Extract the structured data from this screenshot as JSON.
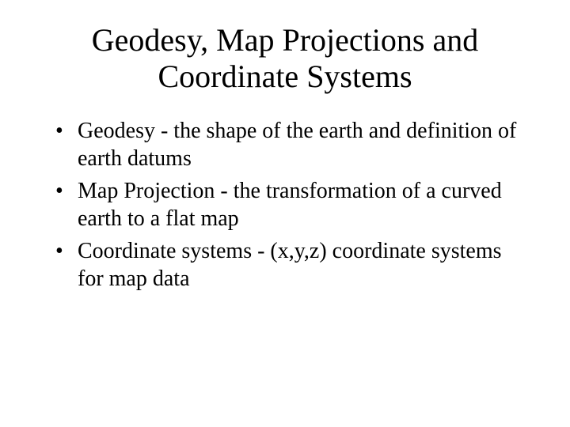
{
  "title": "Geodesy, Map Projections and Coordinate Systems",
  "bullets": [
    {
      "term": "Geodesy",
      "rest": " - the shape of the earth and definition of earth datums"
    },
    {
      "term": "Map Projection",
      "rest": " - the transformation of a curved earth to a flat map"
    },
    {
      "term": "Coordinate systems",
      "rest": " - (x,y,z) coordinate systems for map data"
    }
  ],
  "style": {
    "background_color": "#ffffff",
    "text_color": "#000000",
    "title_fontsize": 40,
    "body_fontsize": 28,
    "font_family": "Times New Roman"
  }
}
